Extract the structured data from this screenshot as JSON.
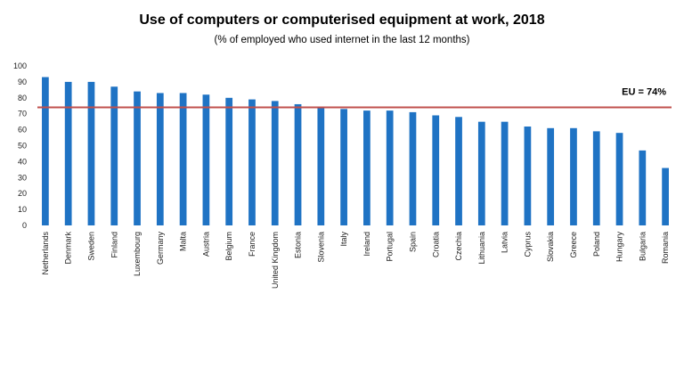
{
  "chart_data": {
    "type": "bar",
    "title": "Use of computers or computerised equipment at work, 2018",
    "subtitle": "(% of employed who used internet in the last 12 months)",
    "xlabel": "",
    "ylabel": "",
    "ylim": [
      0,
      100
    ],
    "yticks": [
      0,
      10,
      20,
      30,
      40,
      50,
      60,
      70,
      80,
      90,
      100
    ],
    "grid": false,
    "bar_color": "#1f73c4",
    "reference_line": {
      "value": 74,
      "label": "EU = 74%",
      "color": "#c0504d"
    },
    "categories": [
      "Netherlands",
      "Denmark",
      "Sweden",
      "Finland",
      "Luxembourg",
      "Germany",
      "Malta",
      "Austria",
      "Belgium",
      "France",
      "United Kingdom",
      "Estonia",
      "Slovenia",
      "Italy",
      "Ireland",
      "Portugal",
      "Spain",
      "Croatia",
      "Czechia",
      "Lithuania",
      "Latvia",
      "Cyprus",
      "Slovakia",
      "Greece",
      "Poland",
      "Hungary",
      "Bulgaria",
      "Romania"
    ],
    "values": [
      93,
      90,
      90,
      87,
      84,
      83,
      83,
      82,
      80,
      79,
      78,
      76,
      74,
      73,
      72,
      72,
      71,
      69,
      68,
      65,
      65,
      62,
      61,
      61,
      59,
      58,
      47,
      36
    ]
  }
}
